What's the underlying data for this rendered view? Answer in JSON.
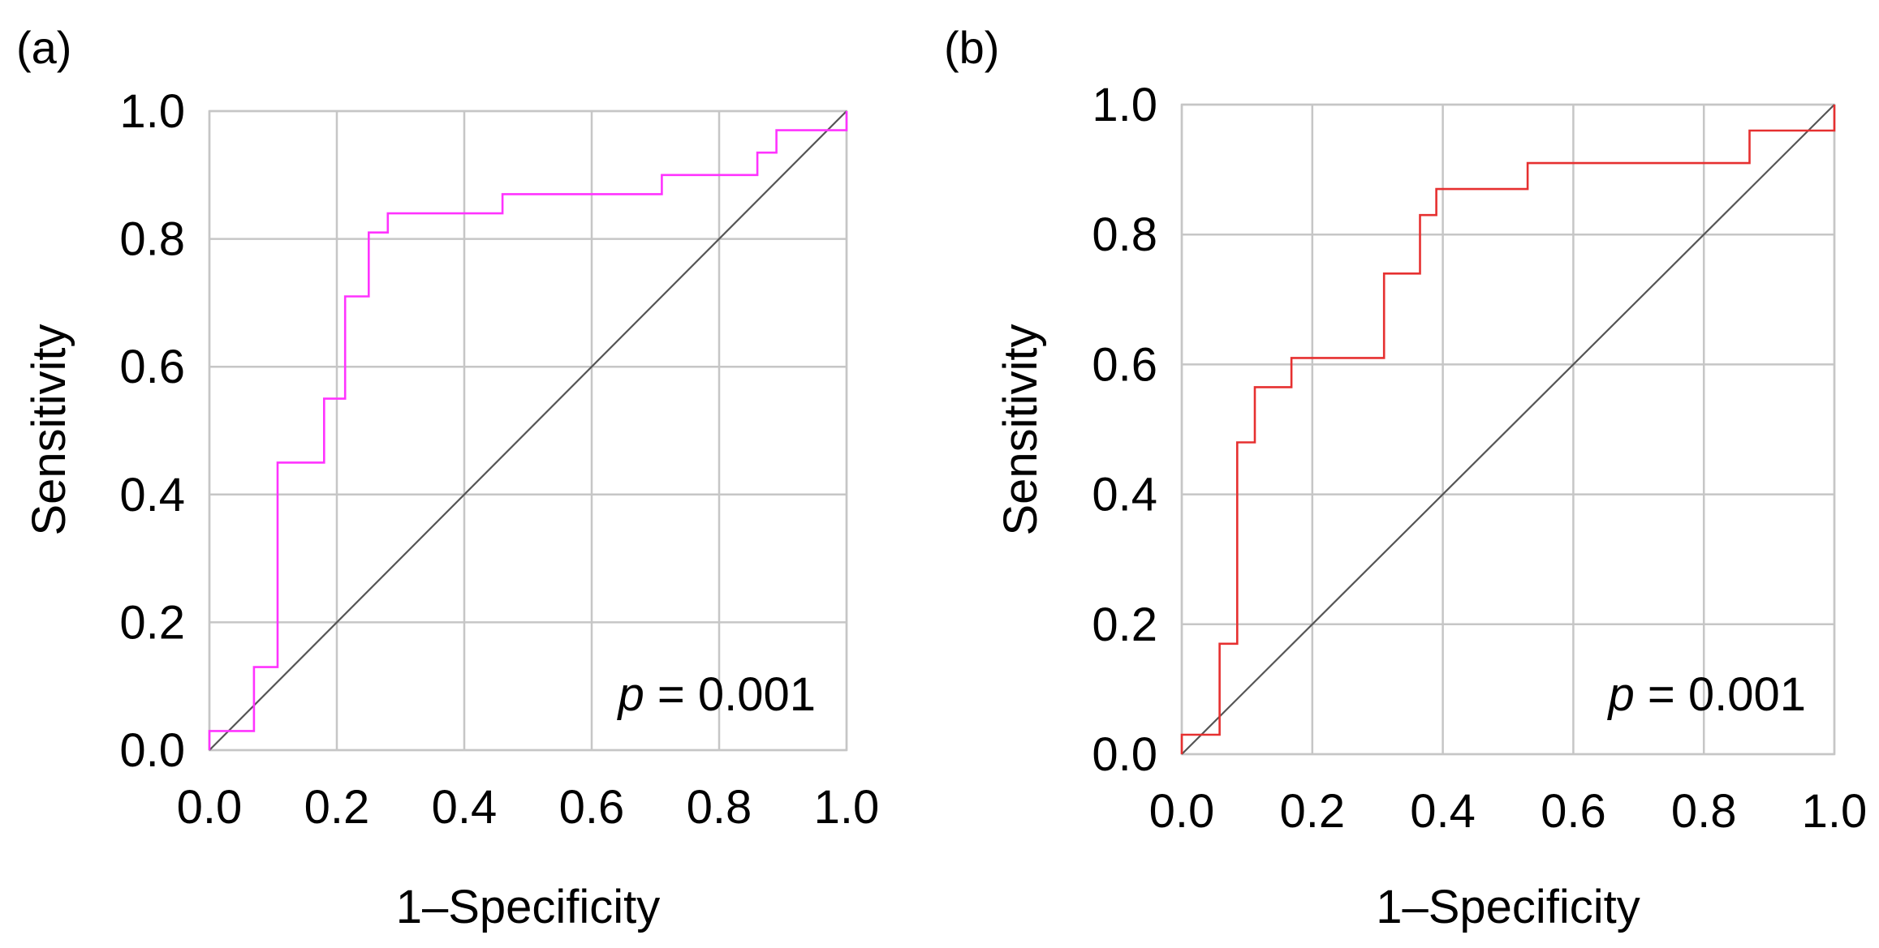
{
  "chart_data": [
    {
      "panel_label": "(a)",
      "type": "line",
      "xlabel": "1–Specificity",
      "ylabel": "Sensitivity",
      "xlim": [
        0,
        1
      ],
      "ylim": [
        0,
        1
      ],
      "xticks": [
        "0.0",
        "0.2",
        "0.4",
        "0.6",
        "0.8",
        "1.0"
      ],
      "yticks": [
        "0.0",
        "0.2",
        "0.4",
        "0.6",
        "0.8",
        "1.0"
      ],
      "grid": true,
      "annotation_p": "p",
      "annotation_value": " = 0.001",
      "series": [
        {
          "color": "#ff33ff",
          "x": [
            0.0,
            0.0,
            0.07,
            0.07,
            0.107,
            0.107,
            0.18,
            0.18,
            0.213,
            0.213,
            0.25,
            0.25,
            0.28,
            0.28,
            0.46,
            0.46,
            0.71,
            0.71,
            0.86,
            0.86,
            0.89,
            0.89,
            1.0,
            1.0
          ],
          "y": [
            0.0,
            0.03,
            0.03,
            0.13,
            0.13,
            0.45,
            0.45,
            0.55,
            0.55,
            0.71,
            0.71,
            0.81,
            0.81,
            0.84,
            0.84,
            0.87,
            0.87,
            0.9,
            0.9,
            0.935,
            0.935,
            0.97,
            0.97,
            1.0
          ]
        }
      ],
      "reference_line": {
        "x": [
          0,
          1
        ],
        "y": [
          0,
          1
        ],
        "color": "#555555"
      }
    },
    {
      "panel_label": "(b)",
      "type": "line",
      "xlabel": "1–Specificity",
      "ylabel": "Sensitivity",
      "xlim": [
        0,
        1
      ],
      "ylim": [
        0,
        1
      ],
      "xticks": [
        "0.0",
        "0.2",
        "0.4",
        "0.6",
        "0.8",
        "1.0"
      ],
      "yticks": [
        "0.0",
        "0.2",
        "0.4",
        "0.6",
        "0.8",
        "1.0"
      ],
      "grid": true,
      "annotation_p": "p",
      "annotation_value": " = 0.001",
      "series": [
        {
          "color": "#e63030",
          "x": [
            0.0,
            0.0,
            0.058,
            0.058,
            0.085,
            0.085,
            0.112,
            0.112,
            0.168,
            0.168,
            0.31,
            0.31,
            0.365,
            0.365,
            0.39,
            0.39,
            0.53,
            0.53,
            0.87,
            0.87,
            1.0,
            1.0
          ],
          "y": [
            0.0,
            0.03,
            0.03,
            0.17,
            0.17,
            0.48,
            0.48,
            0.565,
            0.565,
            0.61,
            0.61,
            0.74,
            0.74,
            0.83,
            0.83,
            0.87,
            0.87,
            0.91,
            0.91,
            0.96,
            0.96,
            1.0
          ]
        }
      ],
      "reference_line": {
        "x": [
          0,
          1
        ],
        "y": [
          0,
          1
        ],
        "color": "#555555"
      }
    }
  ]
}
